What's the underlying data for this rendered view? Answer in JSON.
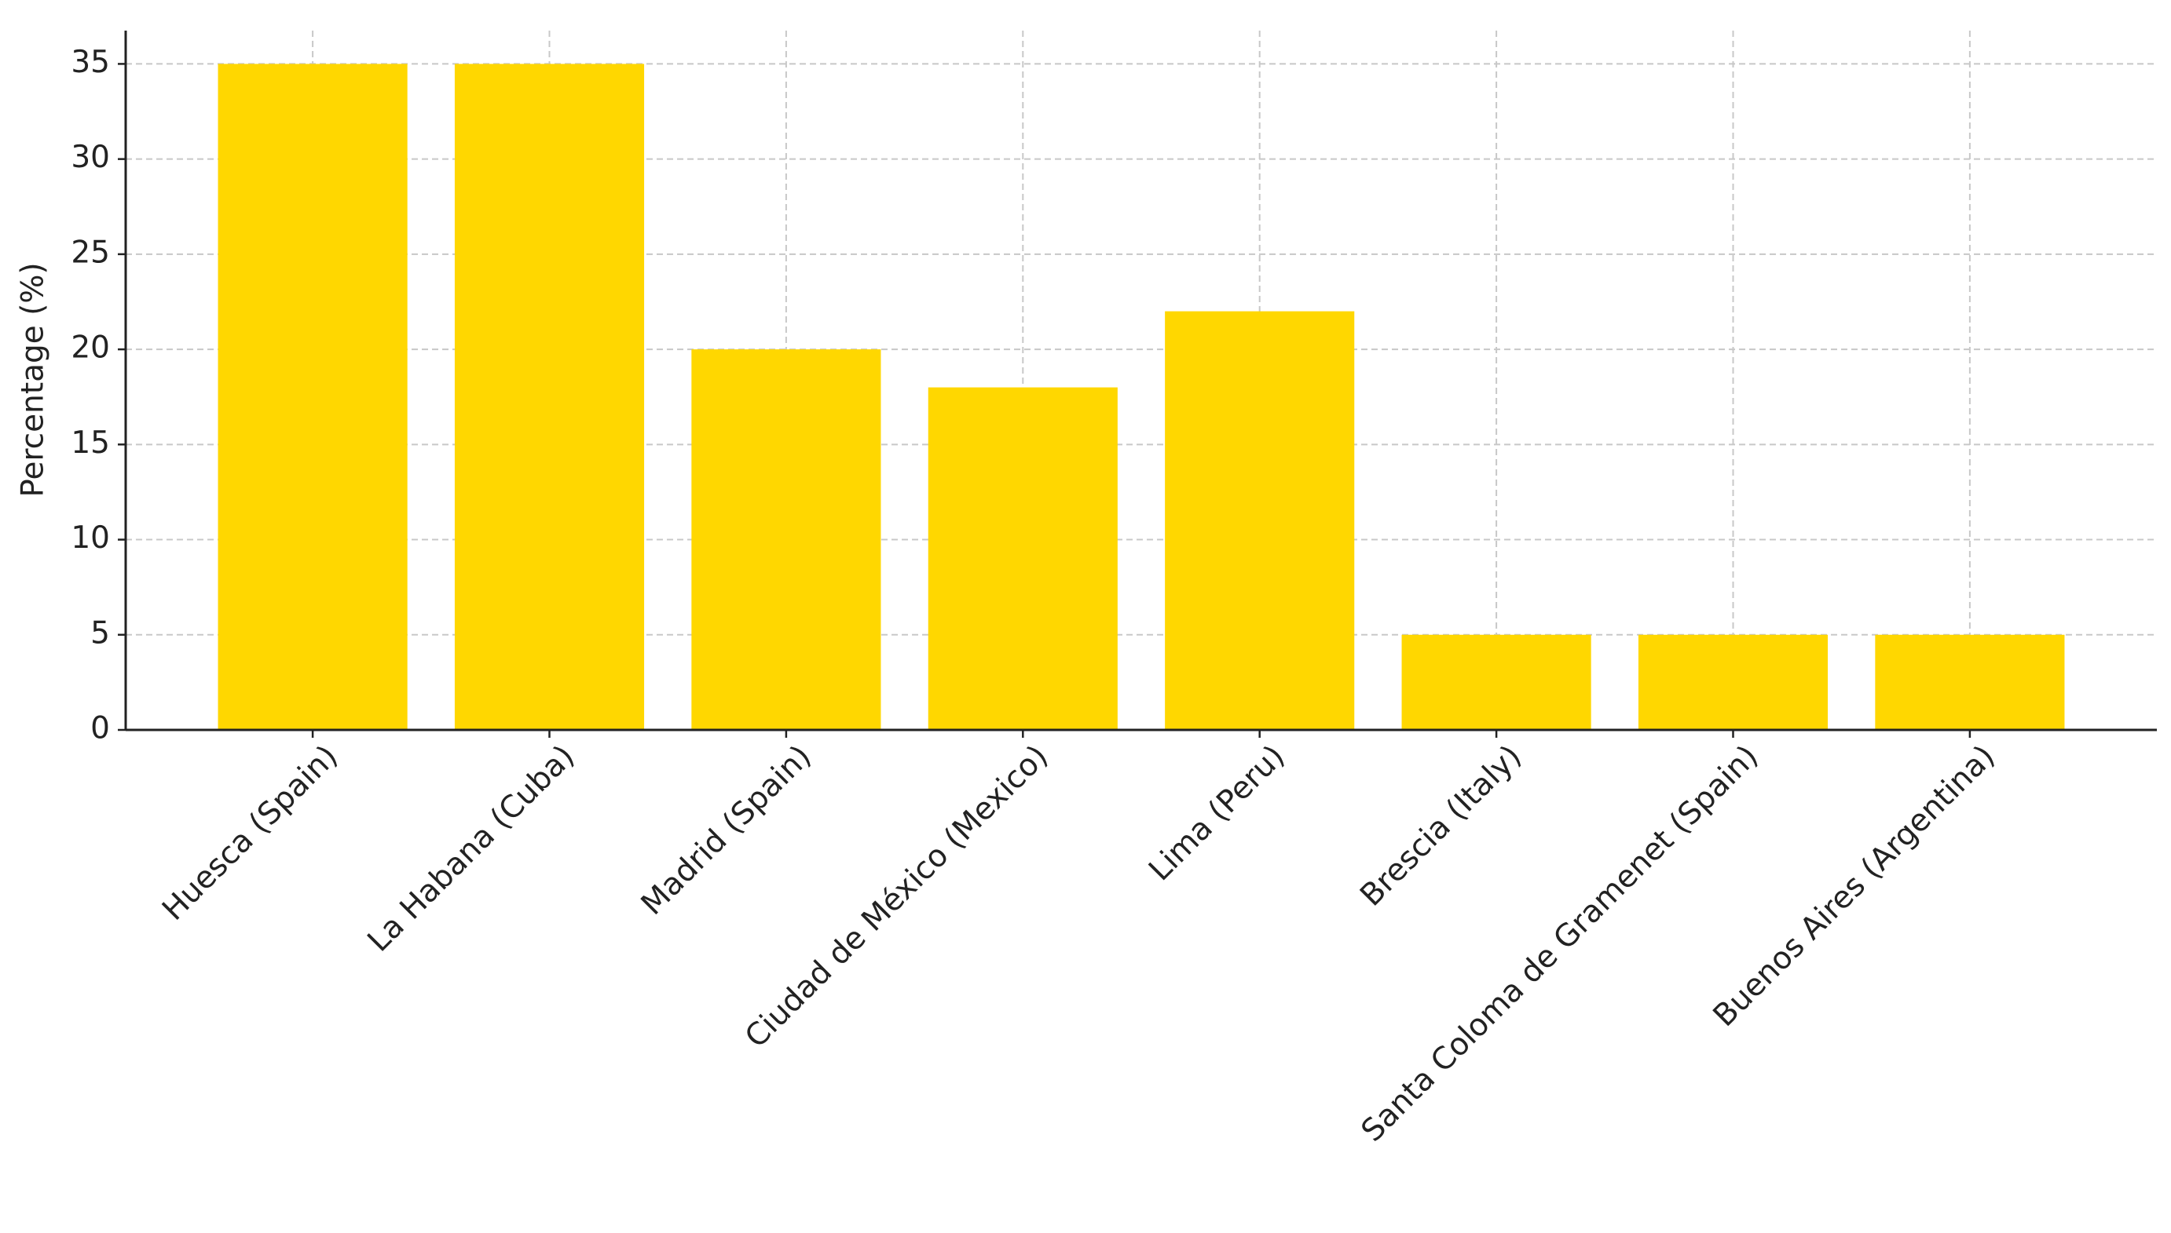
{
  "chart_data": {
    "type": "bar",
    "y_label": "Percentage (%)",
    "categories": [
      "Huesca (Spain)",
      "La Habana (Cuba)",
      "Madrid (Spain)",
      "Ciudad de México (Mexico)",
      "Lima (Peru)",
      "Brescia (Italy)",
      "Santa Coloma de Gramenet (Spain)",
      "Buenos Aires (Argentina)"
    ],
    "values": [
      35,
      35,
      20,
      18,
      22,
      5,
      5,
      5
    ],
    "color": "#ffd700",
    "ylim": [
      0,
      36.75
    ],
    "yticks": [
      0,
      5,
      10,
      15,
      20,
      25,
      30,
      35
    ],
    "grid": true
  }
}
